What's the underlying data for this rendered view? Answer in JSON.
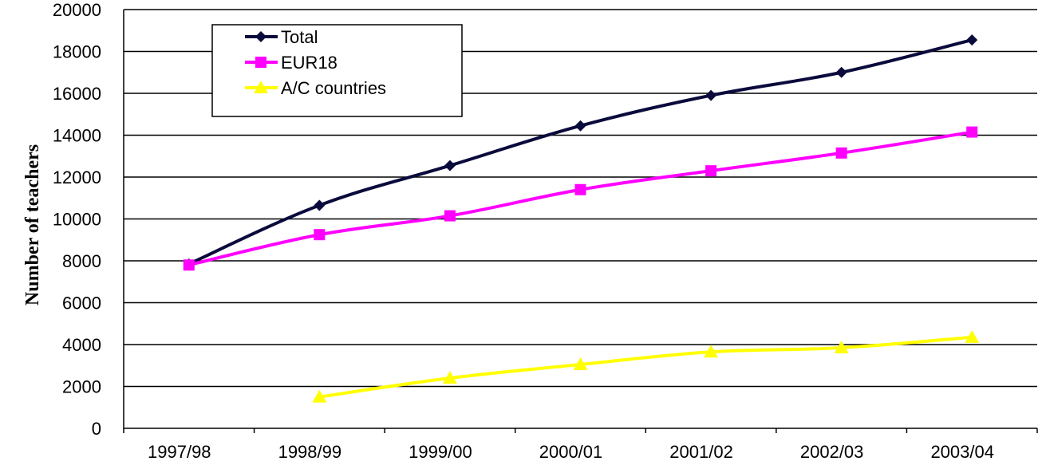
{
  "chart_data": {
    "type": "line",
    "title": "",
    "xlabel": "",
    "ylabel": "Number of teachers",
    "categories": [
      "1997/98",
      "1998/99",
      "1999/00",
      "2000/01",
      "2001/02",
      "2002/03",
      "2003/04"
    ],
    "ylim": [
      0,
      20000
    ],
    "y_ticks": [
      "0",
      "2000",
      "4000",
      "6000",
      "8000",
      "10000",
      "12000",
      "14000",
      "16000",
      "18000",
      "20000"
    ],
    "grid": "horizontal",
    "legend_position": "top-left",
    "series": [
      {
        "name": "Total",
        "color": "#0a0a3c",
        "marker": "diamond",
        "values": [
          7850,
          10650,
          12550,
          14450,
          15900,
          17000,
          18550
        ]
      },
      {
        "name": "EUR18",
        "color": "#ff00ff",
        "marker": "square",
        "values": [
          7800,
          9250,
          10150,
          11400,
          12300,
          13150,
          14150
        ]
      },
      {
        "name": "A/C countries",
        "color": "#ffff00",
        "marker": "triangle",
        "values": [
          null,
          1500,
          2400,
          3050,
          3650,
          3850,
          4350
        ]
      }
    ]
  }
}
